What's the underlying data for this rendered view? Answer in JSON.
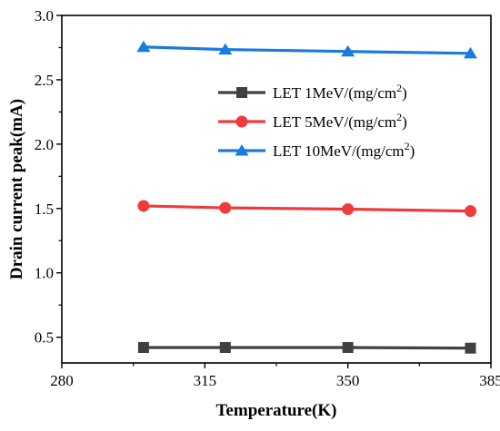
{
  "chart_data": {
    "type": "line",
    "xlabel": "Temperature(K)",
    "ylabel": "Drain current peak(mA)",
    "xlim": [
      280,
      385
    ],
    "ylim": [
      0.3,
      3.0
    ],
    "xticks": [
      280,
      315,
      350,
      385
    ],
    "yticks": [
      0.5,
      1.0,
      1.5,
      2.0,
      2.5,
      3.0
    ],
    "x": [
      300,
      320,
      350,
      380
    ],
    "series": [
      {
        "name": "LET 1MeV/(mg/cm2)",
        "legend_prefix": "LET 1MeV/(mg/cm",
        "legend_sup": "2",
        "legend_suffix": ")",
        "marker": "square",
        "color": "#404040",
        "values": [
          0.42,
          0.42,
          0.42,
          0.415
        ]
      },
      {
        "name": "LET 5MeV/(mg/cm2)",
        "legend_prefix": "LET 5MeV/(mg/cm",
        "legend_sup": "2",
        "legend_suffix": ")",
        "marker": "circle",
        "color": "#ef3b3b",
        "values": [
          1.52,
          1.505,
          1.495,
          1.48
        ]
      },
      {
        "name": "LET 10MeV/(mg/cm2)",
        "legend_prefix": "LET 10MeV/(mg/cm",
        "legend_sup": "2",
        "legend_suffix": ")",
        "marker": "triangle",
        "color": "#1a7ae0",
        "values": [
          2.755,
          2.735,
          2.72,
          2.705
        ]
      }
    ],
    "grid": false,
    "legend_position": "upper-right"
  }
}
